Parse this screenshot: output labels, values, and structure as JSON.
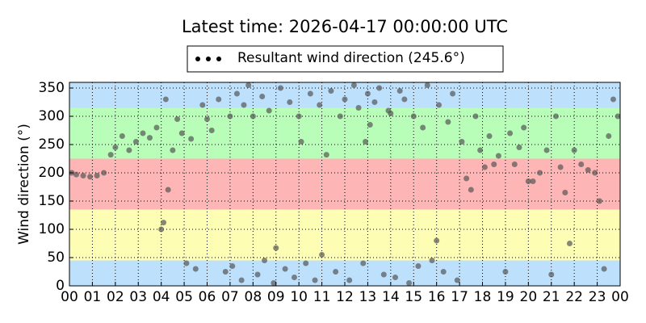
{
  "chart_data": {
    "type": "scatter",
    "title": "Latest time: 2026-04-17 00:00:00 UTC",
    "y_label": "Wind direction (°)",
    "xlim": [
      0,
      24
    ],
    "ylim": [
      0,
      360
    ],
    "xticks": [
      {
        "value": 0,
        "label": "00"
      },
      {
        "value": 1,
        "label": "01"
      },
      {
        "value": 2,
        "label": "02"
      },
      {
        "value": 3,
        "label": "03"
      },
      {
        "value": 4,
        "label": "04"
      },
      {
        "value": 5,
        "label": "05"
      },
      {
        "value": 6,
        "label": "06"
      },
      {
        "value": 7,
        "label": "07"
      },
      {
        "value": 8,
        "label": "08"
      },
      {
        "value": 9,
        "label": "09"
      },
      {
        "value": 10,
        "label": "10"
      },
      {
        "value": 11,
        "label": "11"
      },
      {
        "value": 12,
        "label": "12"
      },
      {
        "value": 13,
        "label": "13"
      },
      {
        "value": 14,
        "label": "14"
      },
      {
        "value": 15,
        "label": "15"
      },
      {
        "value": 16,
        "label": "16"
      },
      {
        "value": 17,
        "label": "17"
      },
      {
        "value": 18,
        "label": "18"
      },
      {
        "value": 19,
        "label": "19"
      },
      {
        "value": 20,
        "label": "20"
      },
      {
        "value": 21,
        "label": "21"
      },
      {
        "value": 22,
        "label": "22"
      },
      {
        "value": 23,
        "label": "23"
      },
      {
        "value": 24,
        "label": "00"
      }
    ],
    "yticks": [
      0,
      50,
      100,
      150,
      200,
      250,
      300,
      350
    ],
    "grid": true,
    "bands": [
      {
        "from": 0,
        "to": 45,
        "color": "#bde0fd"
      },
      {
        "from": 45,
        "to": 135,
        "color": "#fdfdb4"
      },
      {
        "from": 135,
        "to": 225,
        "color": "#fdb5b5"
      },
      {
        "from": 225,
        "to": 315,
        "color": "#b8fdb8"
      },
      {
        "from": 315,
        "to": 360,
        "color": "#bde0fd"
      }
    ],
    "legend": "top",
    "series": [
      {
        "name": "Resultant wind direction (245.6°)",
        "color": "#555555",
        "x": [
          0.1,
          0.3,
          0.6,
          0.9,
          1.2,
          1.5,
          1.8,
          2.0,
          2.3,
          2.6,
          2.9,
          3.2,
          3.5,
          3.8,
          4.0,
          4.1,
          4.2,
          4.3,
          4.5,
          4.7,
          4.9,
          5.1,
          5.3,
          5.5,
          5.8,
          6.0,
          6.2,
          6.5,
          6.8,
          7.0,
          7.1,
          7.3,
          7.5,
          7.6,
          7.8,
          8.0,
          8.2,
          8.4,
          8.5,
          8.7,
          8.9,
          9.0,
          9.2,
          9.4,
          9.6,
          9.8,
          10.0,
          10.1,
          10.3,
          10.5,
          10.7,
          10.9,
          11.0,
          11.2,
          11.4,
          11.6,
          11.8,
          12.0,
          12.2,
          12.4,
          12.6,
          12.8,
          12.9,
          13.0,
          13.1,
          13.3,
          13.5,
          13.7,
          13.9,
          14.0,
          14.2,
          14.4,
          14.6,
          14.8,
          15.0,
          15.2,
          15.4,
          15.6,
          15.8,
          16.0,
          16.1,
          16.3,
          16.5,
          16.7,
          16.9,
          17.1,
          17.3,
          17.5,
          17.7,
          17.9,
          18.1,
          18.3,
          18.5,
          18.7,
          19.0,
          19.2,
          19.4,
          19.6,
          19.8,
          20.0,
          20.2,
          20.5,
          20.8,
          21.0,
          21.2,
          21.4,
          21.6,
          21.8,
          22.0,
          22.3,
          22.6,
          22.9,
          23.1,
          23.3,
          23.5,
          23.7,
          23.9
        ],
        "values": [
          200,
          197,
          195,
          193,
          195,
          200,
          232,
          245,
          265,
          240,
          255,
          270,
          262,
          280,
          100,
          112,
          330,
          170,
          240,
          295,
          270,
          40,
          260,
          30,
          320,
          295,
          275,
          330,
          25,
          300,
          35,
          340,
          10,
          320,
          355,
          300,
          20,
          335,
          45,
          310,
          5,
          67,
          350,
          30,
          325,
          15,
          300,
          255,
          40,
          340,
          10,
          320,
          55,
          232,
          345,
          25,
          300,
          330,
          10,
          355,
          315,
          40,
          255,
          340,
          285,
          325,
          350,
          20,
          310,
          305,
          15,
          345,
          330,
          5,
          300,
          35,
          280,
          355,
          45,
          80,
          320,
          25,
          290,
          340,
          10,
          255,
          190,
          170,
          300,
          240,
          210,
          265,
          215,
          230,
          25,
          270,
          215,
          245,
          280,
          185,
          185,
          200,
          240,
          20,
          300,
          210,
          165,
          75,
          240,
          215,
          205,
          200,
          150,
          30,
          265,
          330,
          300
        ]
      }
    ]
  }
}
